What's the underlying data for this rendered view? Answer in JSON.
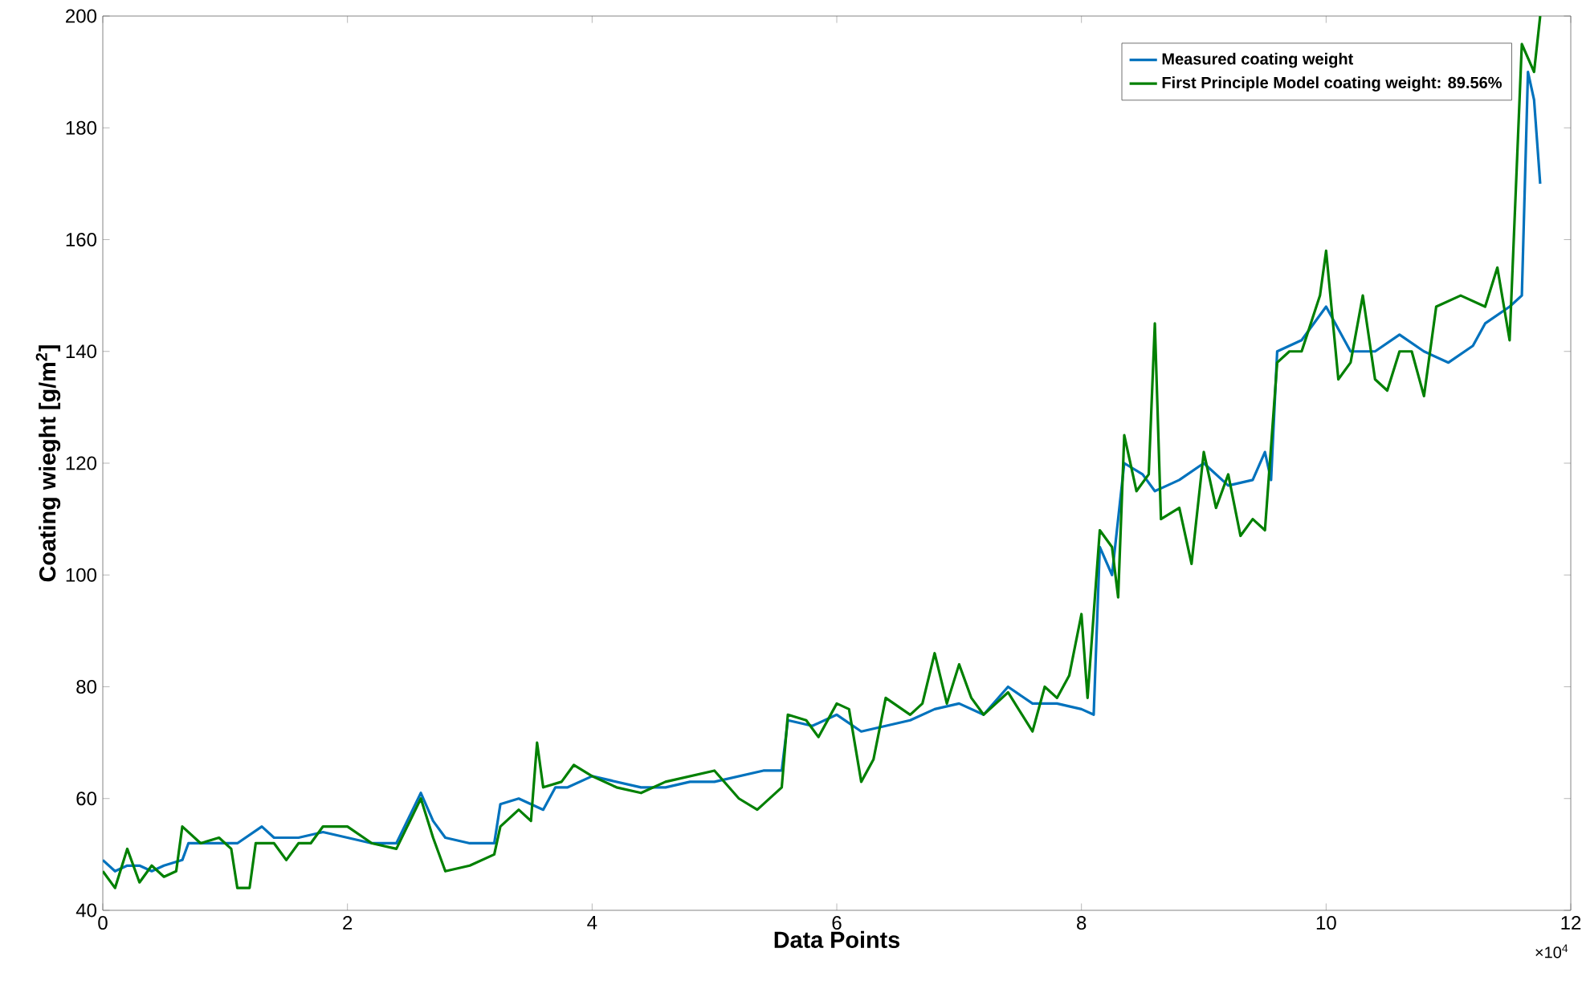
{
  "chart_data": {
    "type": "line",
    "xlabel": "Data Points",
    "ylabel": "Coating wieght [g/m$^{2}$]",
    "xlim": [
      0,
      12
    ],
    "ylim": [
      40,
      200
    ],
    "xticks": [
      0,
      2,
      4,
      6,
      8,
      10,
      12
    ],
    "yticks": [
      40,
      60,
      80,
      100,
      120,
      140,
      160,
      180,
      200
    ],
    "annotations": [
      "×10$^{4}$"
    ],
    "legend": "top right",
    "grid": false,
    "series": [
      {
        "name": "Measured coating weight",
        "color": "#0072bd",
        "x": [
          0,
          0.1,
          0.2,
          0.3,
          0.4,
          0.5,
          0.65,
          0.7,
          0.9,
          1.1,
          1.3,
          1.4,
          1.6,
          1.8,
          2.0,
          2.2,
          2.4,
          2.6,
          2.7,
          2.8,
          3.0,
          3.2,
          3.25,
          3.4,
          3.6,
          3.7,
          3.8,
          4.0,
          4.2,
          4.4,
          4.6,
          4.8,
          5.0,
          5.2,
          5.4,
          5.55,
          5.6,
          5.8,
          6.0,
          6.2,
          6.4,
          6.6,
          6.8,
          7.0,
          7.2,
          7.4,
          7.6,
          7.8,
          8.0,
          8.1,
          8.15,
          8.25,
          8.35,
          8.5,
          8.6,
          8.7,
          8.8,
          9.0,
          9.2,
          9.4,
          9.5,
          9.55,
          9.6,
          9.8,
          10.0,
          10.2,
          10.4,
          10.6,
          10.8,
          11.0,
          11.2,
          11.3,
          11.5,
          11.6,
          11.65,
          11.7,
          11.75
        ],
        "values": [
          49,
          47,
          48,
          48,
          47,
          48,
          49,
          52,
          52,
          52,
          55,
          53,
          53,
          54,
          53,
          52,
          52,
          61,
          56,
          53,
          52,
          52,
          59,
          60,
          58,
          62,
          62,
          64,
          63,
          62,
          62,
          63,
          63,
          64,
          65,
          65,
          74,
          73,
          75,
          72,
          73,
          74,
          76,
          77,
          75,
          80,
          77,
          77,
          76,
          75,
          105,
          100,
          120,
          118,
          115,
          116,
          117,
          120,
          116,
          117,
          122,
          117,
          140,
          142,
          148,
          140,
          140,
          143,
          140,
          138,
          141,
          145,
          148,
          150,
          190,
          185,
          170
        ]
      },
      {
        "name": "First Principle Model coating weight: 89.56%",
        "color": "#008000",
        "x": [
          0,
          0.1,
          0.2,
          0.3,
          0.4,
          0.5,
          0.6,
          0.65,
          0.8,
          0.95,
          1.05,
          1.1,
          1.2,
          1.25,
          1.4,
          1.5,
          1.6,
          1.7,
          1.8,
          2.0,
          2.2,
          2.4,
          2.6,
          2.7,
          2.8,
          3.0,
          3.2,
          3.25,
          3.4,
          3.5,
          3.55,
          3.6,
          3.75,
          3.85,
          4.0,
          4.2,
          4.4,
          4.6,
          4.8,
          5.0,
          5.2,
          5.35,
          5.55,
          5.6,
          5.75,
          5.85,
          6.0,
          6.1,
          6.2,
          6.3,
          6.4,
          6.6,
          6.7,
          6.8,
          6.9,
          7.0,
          7.1,
          7.2,
          7.4,
          7.6,
          7.7,
          7.8,
          7.9,
          8.0,
          8.05,
          8.15,
          8.25,
          8.3,
          8.35,
          8.45,
          8.55,
          8.6,
          8.65,
          8.8,
          8.9,
          9.0,
          9.1,
          9.2,
          9.3,
          9.4,
          9.5,
          9.6,
          9.7,
          9.8,
          9.95,
          10.0,
          10.1,
          10.2,
          10.3,
          10.4,
          10.5,
          10.6,
          10.7,
          10.8,
          10.9,
          11.1,
          11.3,
          11.4,
          11.5,
          11.6,
          11.7,
          11.75
        ],
        "values": [
          47,
          44,
          51,
          45,
          48,
          46,
          47,
          55,
          52,
          53,
          51,
          44,
          44,
          52,
          52,
          49,
          52,
          52,
          55,
          55,
          52,
          51,
          60,
          53,
          47,
          48,
          50,
          55,
          58,
          56,
          70,
          62,
          63,
          66,
          64,
          62,
          61,
          63,
          64,
          65,
          60,
          58,
          62,
          75,
          74,
          71,
          77,
          76,
          63,
          67,
          78,
          75,
          77,
          86,
          77,
          84,
          78,
          75,
          79,
          72,
          80,
          78,
          82,
          93,
          78,
          108,
          105,
          96,
          125,
          115,
          118,
          145,
          110,
          112,
          102,
          122,
          112,
          118,
          107,
          110,
          108,
          138,
          140,
          140,
          150,
          158,
          135,
          138,
          150,
          135,
          133,
          140,
          140,
          132,
          148,
          150,
          148,
          155,
          142,
          195,
          190,
          200
        ]
      }
    ]
  }
}
